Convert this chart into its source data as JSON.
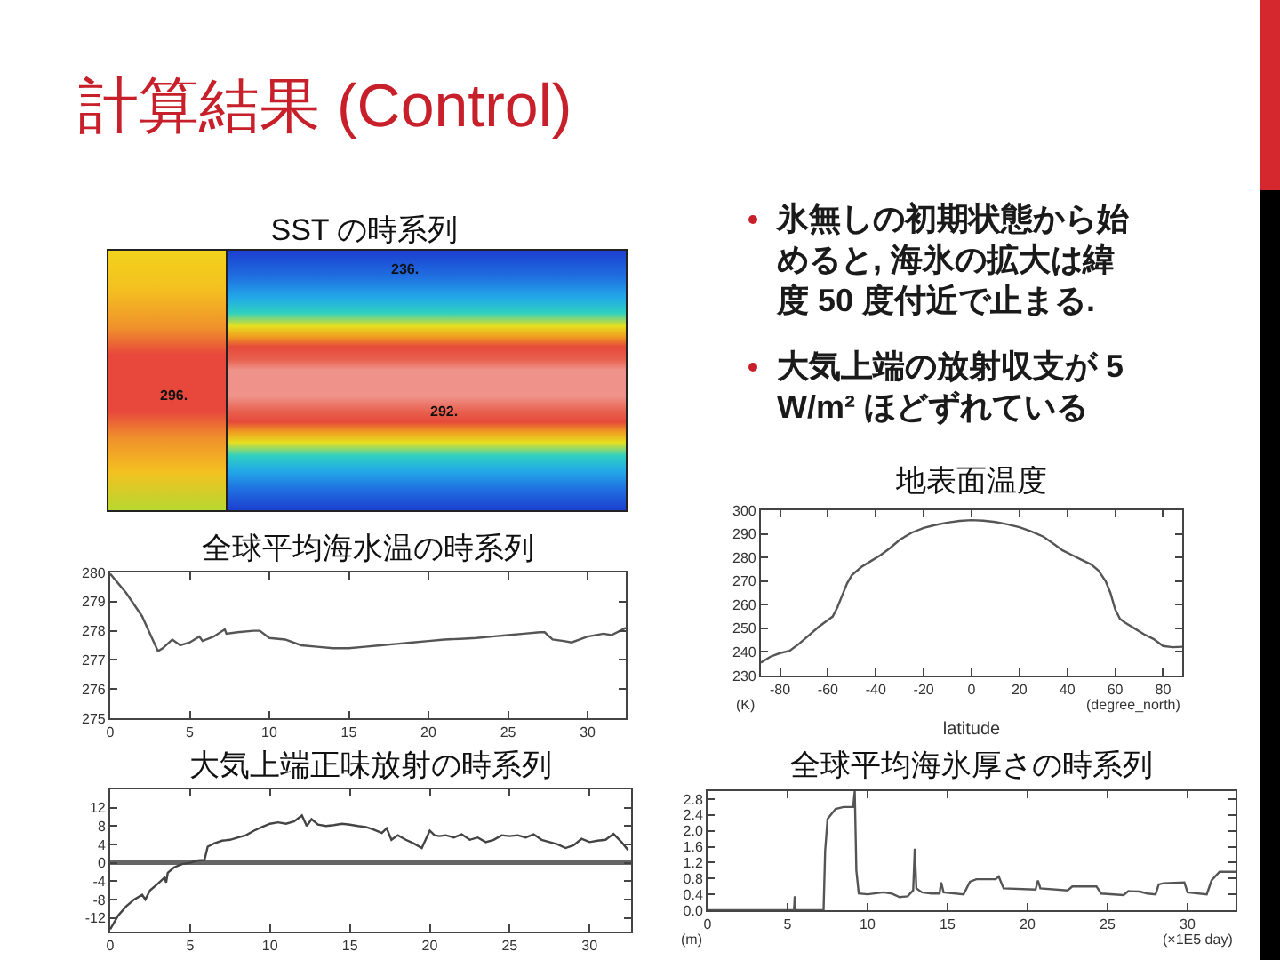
{
  "chart_data": [
    {
      "type": "other",
      "title": "計算結果 (Control)"
    },
    {
      "type": "other",
      "title": "SST の時系列",
      "annotations": [
        "236.",
        "296.",
        "292."
      ]
    },
    {
      "type": "other",
      "annotations": [
        "氷無しの初期状態から始めると, 海氷の拡大は緯度 50 度付近で止まる.",
        "大気上端の放射収支が 5 W/m² ほどずれている"
      ]
    },
    {
      "type": "line",
      "title": "全球平均海水温の時系列",
      "x": [
        0,
        1,
        2,
        2.5,
        3,
        3.3,
        3.9,
        4.4,
        5,
        5.6,
        5.8,
        6.5,
        7.2,
        7.3,
        8,
        9,
        9.4,
        10,
        11,
        12,
        13,
        14,
        15,
        16,
        17,
        18,
        19,
        20,
        21,
        22,
        23,
        24,
        25,
        26,
        27,
        27.3,
        27.8,
        28.5,
        29,
        30,
        31,
        31.5,
        32.4
      ],
      "values": [
        279.95,
        279.3,
        278.5,
        277.9,
        277.3,
        277.4,
        277.7,
        277.5,
        277.6,
        277.8,
        277.65,
        277.8,
        278.05,
        277.9,
        277.95,
        278.0,
        278.0,
        277.75,
        277.7,
        277.5,
        277.45,
        277.4,
        277.4,
        277.45,
        277.5,
        277.55,
        277.6,
        277.65,
        277.7,
        277.72,
        277.75,
        277.8,
        277.85,
        277.9,
        277.95,
        277.95,
        277.7,
        277.65,
        277.6,
        277.8,
        277.9,
        277.85,
        278.1
      ],
      "color": "#555555",
      "xlim": [
        0,
        32.4
      ],
      "xticks": [
        0,
        5,
        10,
        15,
        20,
        25,
        30
      ],
      "ylim": [
        275,
        280
      ],
      "yticks": [
        275,
        276,
        277,
        278,
        279,
        280
      ]
    },
    {
      "type": "line",
      "title": "地表面温度",
      "xlabel": "latitude",
      "annotations": [
        "(K)",
        "(degree_north)"
      ],
      "x": [
        -88,
        -84,
        -80,
        -76,
        -72,
        -68,
        -64,
        -60,
        -58,
        -56,
        -54,
        -52,
        -50,
        -46,
        -42,
        -38,
        -34,
        -30,
        -25,
        -20,
        -15,
        -10,
        -5,
        0,
        5,
        10,
        15,
        20,
        25,
        30,
        34,
        38,
        42,
        46,
        50,
        53,
        56,
        58,
        60,
        62,
        64,
        68,
        72,
        76,
        80,
        84,
        88
      ],
      "values": [
        235.5,
        238,
        239.5,
        240.5,
        243.5,
        247,
        250.5,
        253.5,
        255,
        259,
        264,
        269,
        272.5,
        276,
        278.5,
        281,
        284,
        287.5,
        290.5,
        292.5,
        293.8,
        294.8,
        295.5,
        295.8,
        295.6,
        295,
        294,
        292.8,
        291,
        288.8,
        286,
        283,
        281,
        279,
        277,
        274.5,
        270,
        265,
        258,
        254,
        252.5,
        250,
        247.5,
        245.5,
        242.5,
        242,
        242.2
      ],
      "color": "#555555",
      "xlim": [
        -88,
        88
      ],
      "xticks": [
        -80,
        -60,
        -40,
        -20,
        0,
        20,
        40,
        60,
        80
      ],
      "ylim": [
        230,
        300
      ],
      "yticks": [
        230,
        240,
        250,
        260,
        270,
        280,
        290,
        300
      ]
    },
    {
      "type": "line",
      "title": "大気上端正味放射の時系列",
      "x": [
        0,
        0.5,
        1,
        1.5,
        2,
        2.2,
        2.5,
        3,
        3.4,
        3.5,
        3.6,
        4,
        4.5,
        5,
        5.5,
        5.9,
        6.1,
        6.5,
        7,
        7.5,
        8,
        8.5,
        9,
        9.5,
        10,
        10.5,
        11,
        11.5,
        12,
        12.3,
        12.6,
        13,
        13.5,
        14,
        14.5,
        15,
        15.5,
        16,
        16.5,
        17,
        17.3,
        17.6,
        18,
        18.5,
        19,
        19.5,
        20,
        20.3,
        20.6,
        21,
        21.5,
        22,
        22.5,
        23,
        23.5,
        24,
        24.5,
        25,
        25.5,
        26,
        26.5,
        27,
        27.5,
        28,
        28.5,
        29,
        29.5,
        30,
        30.5,
        31,
        31.5,
        32,
        32.4
      ],
      "values": [
        -14.5,
        -11.5,
        -9.5,
        -8,
        -7,
        -8,
        -6,
        -4.5,
        -3.2,
        -4.3,
        -2.2,
        -1,
        -0.3,
        0,
        0.5,
        0.6,
        3.5,
        4.2,
        4.8,
        5,
        5.5,
        6,
        7,
        7.8,
        8.5,
        8.8,
        8.5,
        9,
        10.3,
        8,
        9.5,
        8.3,
        8,
        8.2,
        8.5,
        8.3,
        8,
        7.8,
        7.2,
        6.5,
        7.5,
        5,
        6,
        5,
        4.2,
        3.2,
        7,
        6,
        5.8,
        6,
        5.5,
        6.2,
        5,
        5.5,
        4.5,
        5,
        6,
        5.8,
        6,
        5.5,
        6.2,
        5,
        4.5,
        4,
        3.2,
        3.8,
        5.2,
        4.5,
        4.8,
        5,
        6.3,
        4.5,
        2.8
      ],
      "color": "#444444",
      "xlim": [
        0,
        32.6
      ],
      "xticks": [
        0,
        5,
        10,
        15,
        20,
        25,
        30
      ],
      "ylim": [
        -15,
        16
      ],
      "yticks": [
        -12,
        -8,
        -4,
        0,
        4,
        8,
        12
      ],
      "ref_lines": [
        {
          "axis": "y",
          "value": 0,
          "color": "#666666"
        }
      ]
    },
    {
      "type": "line",
      "title": "全球平均海氷厚さの時系列",
      "annotations": [
        "(m)",
        "(×1E5 day)"
      ],
      "x": [
        0,
        5.4,
        5.45,
        5.5,
        7.25,
        7.35,
        7.5,
        8,
        8.5,
        9.1,
        9.2,
        9.3,
        9.45,
        10,
        11,
        11.5,
        12,
        12.5,
        12.85,
        12.95,
        13.05,
        13.4,
        14,
        14.5,
        14.6,
        14.75,
        16,
        16.4,
        16.8,
        18,
        18.2,
        18.5,
        20.5,
        20.65,
        20.8,
        22.5,
        22.8,
        24.3,
        24.6,
        26,
        26.3,
        27,
        27.5,
        28,
        28.2,
        28.5,
        29.8,
        30,
        31.2,
        31.5,
        32,
        33
      ],
      "values": [
        0,
        0,
        0.35,
        0,
        0,
        1.5,
        2.3,
        2.55,
        2.6,
        2.6,
        3.0,
        1.0,
        0.42,
        0.4,
        0.45,
        0.42,
        0.33,
        0.35,
        0.5,
        1.55,
        0.55,
        0.45,
        0.42,
        0.42,
        0.7,
        0.45,
        0.4,
        0.72,
        0.78,
        0.78,
        0.85,
        0.55,
        0.52,
        0.75,
        0.55,
        0.5,
        0.6,
        0.6,
        0.42,
        0.38,
        0.48,
        0.47,
        0.42,
        0.4,
        0.65,
        0.68,
        0.7,
        0.45,
        0.4,
        0.75,
        0.97,
        0.97
      ],
      "color": "#555555",
      "xlim": [
        0,
        33
      ],
      "xticks": [
        0,
        5,
        10,
        15,
        20,
        25,
        30
      ],
      "ylim": [
        0,
        3
      ],
      "yticks": [
        {
          "value": 0,
          "label": "0.0"
        },
        0.4,
        0.8,
        1.2,
        1.6,
        {
          "value": 2,
          "label": "2.0"
        },
        2.4,
        2.8
      ]
    }
  ]
}
